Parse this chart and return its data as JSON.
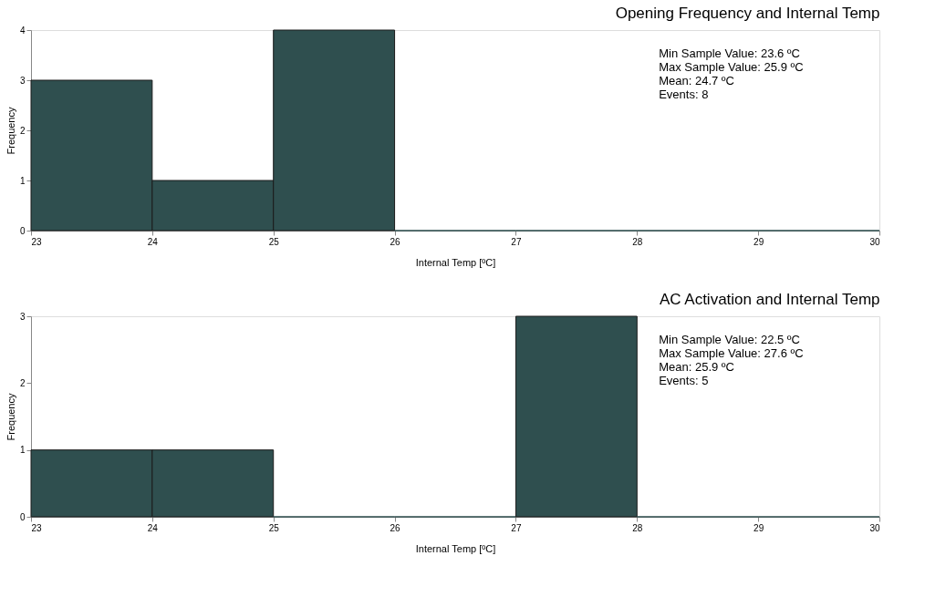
{
  "chart_data": [
    {
      "type": "histogram",
      "title": "Opening Frequency and Internal Temp",
      "xlabel": "Internal Temp [ºC]",
      "ylabel": "Frequency",
      "bins": [
        23,
        24,
        25,
        26,
        27,
        28,
        29,
        30
      ],
      "values": [
        3,
        1,
        4,
        0,
        0,
        0,
        0
      ],
      "color": "#2f4f4f",
      "xlim": [
        23,
        30
      ],
      "xticks": [
        23,
        24,
        25,
        26,
        27,
        28,
        29,
        30
      ],
      "ylim": [
        0,
        4
      ],
      "yticks": [
        0,
        1,
        2,
        3,
        4
      ],
      "grid": false,
      "annotations": [
        "Min Sample Value: 23.6 ºC",
        "Max Sample Value: 25.9  ºC",
        "Mean: 24.7 ºC",
        "Events: 8"
      ]
    },
    {
      "type": "histogram",
      "title": "AC Activation and Internal Temp",
      "xlabel": "Internal Temp [ºC]",
      "ylabel": "Frequency",
      "bins": [
        23,
        24,
        25,
        26,
        27,
        28,
        29,
        30
      ],
      "values": [
        1,
        1,
        0,
        0,
        3,
        0,
        0
      ],
      "color": "#2f4f4f",
      "xlim": [
        23,
        30
      ],
      "xticks": [
        23,
        24,
        25,
        26,
        27,
        28,
        29,
        30
      ],
      "ylim": [
        0,
        3
      ],
      "yticks": [
        0,
        1,
        2,
        3
      ],
      "grid": false,
      "annotations": [
        "Min Sample Value: 22.5 ºC",
        "Max Sample Value: 27.6 ºC",
        "Mean: 25.9 ºC",
        "Events: 5"
      ]
    }
  ]
}
